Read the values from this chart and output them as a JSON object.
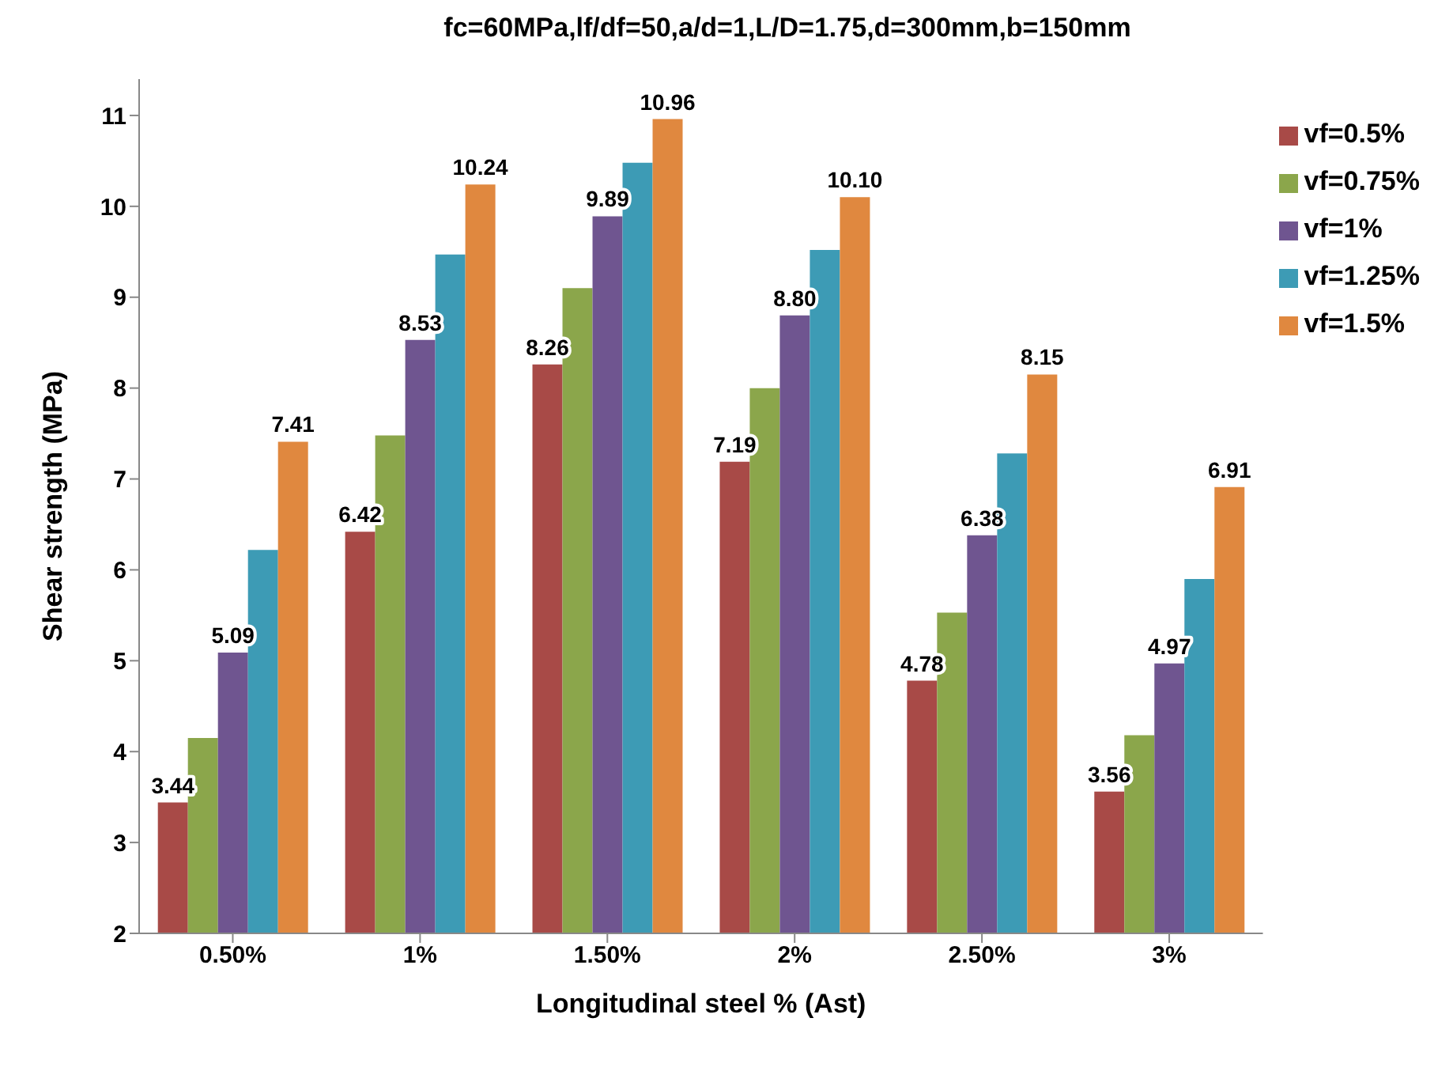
{
  "chart_data": {
    "type": "bar",
    "title": "fc=60MPa,lf/df=50,a/d=1,L/D=1.75,d=300mm,b=150mm",
    "xlabel": "Longitudinal steel % (Ast)",
    "ylabel": "Shear strength (MPa)",
    "categories": [
      "0.50%",
      "1%",
      "1.50%",
      "2%",
      "2.50%",
      "3%"
    ],
    "series": [
      {
        "name": "vf=0.5%",
        "color": "#a84a47",
        "values": [
          3.44,
          6.42,
          8.26,
          7.19,
          4.78,
          3.56
        ],
        "value_labels": [
          "3.44",
          "6.42",
          "8.26",
          "7.19",
          "4.78",
          "3.56"
        ]
      },
      {
        "name": "vf=0.75%",
        "color": "#8ba64b",
        "values": [
          4.15,
          7.48,
          9.1,
          8.0,
          5.53,
          4.18
        ]
      },
      {
        "name": "vf=1%",
        "color": "#6f5590",
        "values": [
          5.09,
          8.53,
          9.89,
          8.8,
          6.38,
          4.97
        ],
        "value_labels": [
          "5.09",
          "8.53",
          "9.89",
          "8.80",
          "6.38",
          "4.97"
        ]
      },
      {
        "name": "vf=1.25%",
        "color": "#3d9bb5",
        "values": [
          6.22,
          9.47,
          10.48,
          9.52,
          7.28,
          5.9
        ]
      },
      {
        "name": "vf=1.5%",
        "color": "#e0883f",
        "values": [
          7.41,
          10.24,
          10.96,
          10.1,
          8.15,
          6.91
        ],
        "value_labels": [
          "7.41",
          "10.24",
          "10.96",
          "10.10",
          "8.15",
          "6.91"
        ]
      }
    ],
    "ylim": [
      2,
      11.4
    ],
    "yticks": [
      2,
      3,
      4,
      5,
      6,
      7,
      8,
      9,
      10,
      11
    ],
    "legend": "top right"
  }
}
